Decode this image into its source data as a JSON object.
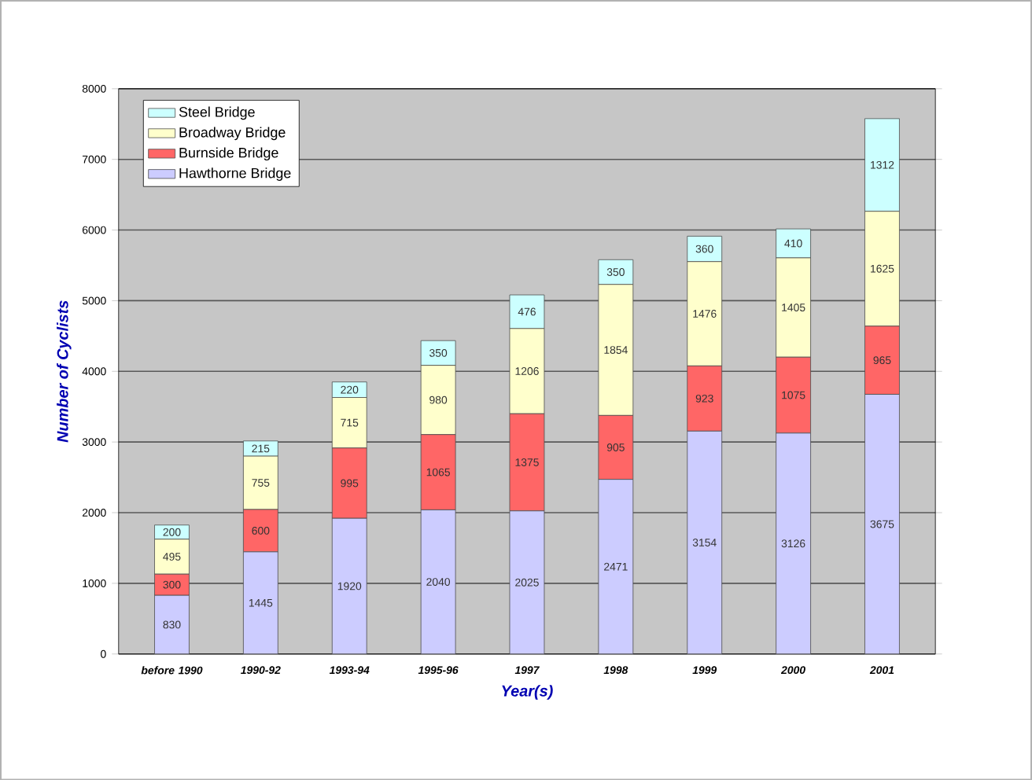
{
  "chart_data": {
    "type": "bar",
    "stacked": true,
    "xlabel": "Year(s)",
    "ylabel": "Number of Cyclists",
    "categories": [
      "before 1990",
      "1990-92",
      "1993-94",
      "1995-96",
      "1997",
      "1998",
      "1999",
      "2000",
      "2001"
    ],
    "series": [
      {
        "name": "Hawthorne Bridge",
        "color": "#ccccff",
        "values": [
          830,
          1445,
          1920,
          2040,
          2025,
          2471,
          3154,
          3126,
          3675
        ]
      },
      {
        "name": "Burnside Bridge",
        "color": "#ff6666",
        "values": [
          300,
          600,
          995,
          1065,
          1375,
          905,
          923,
          1075,
          965
        ]
      },
      {
        "name": "Broadway Bridge",
        "color": "#ffffcc",
        "values": [
          495,
          755,
          715,
          980,
          1206,
          1854,
          1476,
          1405,
          1625
        ]
      },
      {
        "name": "Steel Bridge",
        "color": "#ccffff",
        "values": [
          200,
          215,
          220,
          350,
          476,
          350,
          360,
          410,
          1312
        ]
      }
    ],
    "ylim": [
      0,
      8000
    ],
    "yticks": [
      0,
      1000,
      2000,
      3000,
      4000,
      5000,
      6000,
      7000,
      8000
    ],
    "grid": "y",
    "legend": "top left",
    "data_labels": true
  }
}
